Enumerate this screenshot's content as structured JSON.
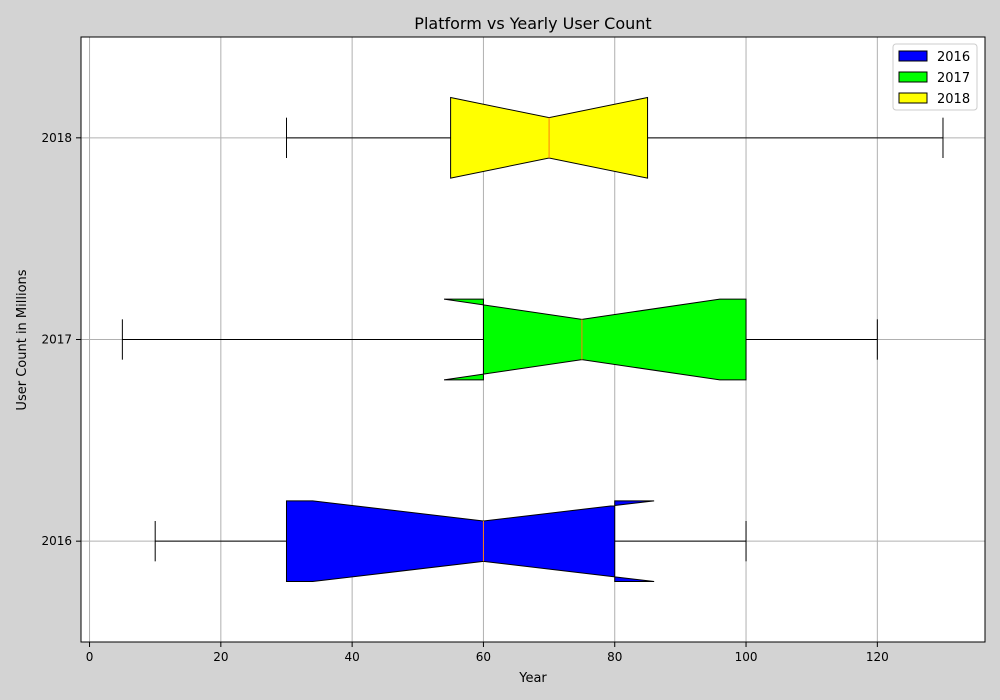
{
  "chart_data": {
    "type": "box",
    "orientation": "horizontal",
    "notched": true,
    "title": "Platform vs Yearly User Count",
    "xlabel": "Year",
    "ylabel": "User Count in Millions",
    "xlim": [
      -1.3,
      136.4
    ],
    "xticks": [
      0,
      20,
      40,
      60,
      80,
      100,
      120
    ],
    "categories": [
      "2016",
      "2017",
      "2018"
    ],
    "grid": true,
    "legend": {
      "placement": "top-right",
      "entries": [
        "2016",
        "2017",
        "2018"
      ]
    },
    "series": [
      {
        "name": "2016",
        "color": "#0000ff",
        "whisker_low": 10,
        "q1": 30,
        "median": 60,
        "q3": 80,
        "whisker_high": 100,
        "notch_low": 34,
        "notch_high": 86
      },
      {
        "name": "2017",
        "color": "#00ff00",
        "whisker_low": 5,
        "q1": 60,
        "median": 75,
        "q3": 100,
        "whisker_high": 120,
        "notch_low": 54,
        "notch_high": 96
      },
      {
        "name": "2018",
        "color": "#ffff00",
        "whisker_low": 30,
        "q1": 55,
        "median": 70,
        "q3": 85,
        "whisker_high": 130,
        "notch_low": 55,
        "notch_high": 85
      }
    ],
    "median_color": "#ff7f0e"
  }
}
